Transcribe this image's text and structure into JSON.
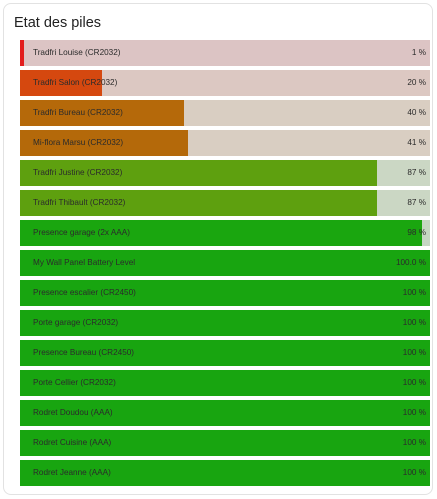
{
  "card": {
    "title": "Etat des piles"
  },
  "batteries": [
    {
      "label": "Tradfri Louise (CR2032)",
      "level": 1,
      "value_text": "1 %",
      "fill_color": "#e21d1d",
      "track_color": "#dcc4c4"
    },
    {
      "label": "Tradfri Salon (CR2032)",
      "level": 20,
      "value_text": "20 %",
      "fill_color": "#d5480f",
      "track_color": "#dcc8c2"
    },
    {
      "label": "Tradfri Bureau (CR2032)",
      "level": 40,
      "value_text": "40 %",
      "fill_color": "#b5690a",
      "track_color": "#d9cec2"
    },
    {
      "label": "Mi-flora Marsu (CR2032)",
      "level": 41,
      "value_text": "41 %",
      "fill_color": "#b4690a",
      "track_color": "#d9cec2"
    },
    {
      "label": "Tradfri Justine (CR2032)",
      "level": 87,
      "value_text": "87 %",
      "fill_color": "#5ea00f",
      "track_color": "#cbd7c4"
    },
    {
      "label": "Tradfri Thibault (CR2032)",
      "level": 87,
      "value_text": "87 %",
      "fill_color": "#5ea00f",
      "track_color": "#cbd7c4"
    },
    {
      "label": "Presence garage (2x AAA)",
      "level": 98,
      "value_text": "98 %",
      "fill_color": "#1aa60f",
      "track_color": "#c5d6c3"
    },
    {
      "label": "My Wall Panel Battery Level",
      "level": 100,
      "value_text": "100.0 %",
      "fill_color": "#18a510",
      "track_color": "#c5d6c3"
    },
    {
      "label": "Presence escalier (CR2450)",
      "level": 100,
      "value_text": "100 %",
      "fill_color": "#18a510",
      "track_color": "#c5d6c3"
    },
    {
      "label": "Porte garage (CR2032)",
      "level": 100,
      "value_text": "100 %",
      "fill_color": "#18a510",
      "track_color": "#c5d6c3"
    },
    {
      "label": "Presence Bureau (CR2450)",
      "level": 100,
      "value_text": "100 %",
      "fill_color": "#18a510",
      "track_color": "#c5d6c3"
    },
    {
      "label": "Porte Cellier (CR2032)",
      "level": 100,
      "value_text": "100 %",
      "fill_color": "#18a510",
      "track_color": "#c5d6c3"
    },
    {
      "label": "Rodret Doudou (AAA)",
      "level": 100,
      "value_text": "100 %",
      "fill_color": "#18a510",
      "track_color": "#c5d6c3"
    },
    {
      "label": "Rodret Cuisine (AAA)",
      "level": 100,
      "value_text": "100 %",
      "fill_color": "#18a510",
      "track_color": "#c5d6c3"
    },
    {
      "label": "Rodret Jeanne (AAA)",
      "level": 100,
      "value_text": "100 %",
      "fill_color": "#18a510",
      "track_color": "#c5d6c3"
    }
  ]
}
